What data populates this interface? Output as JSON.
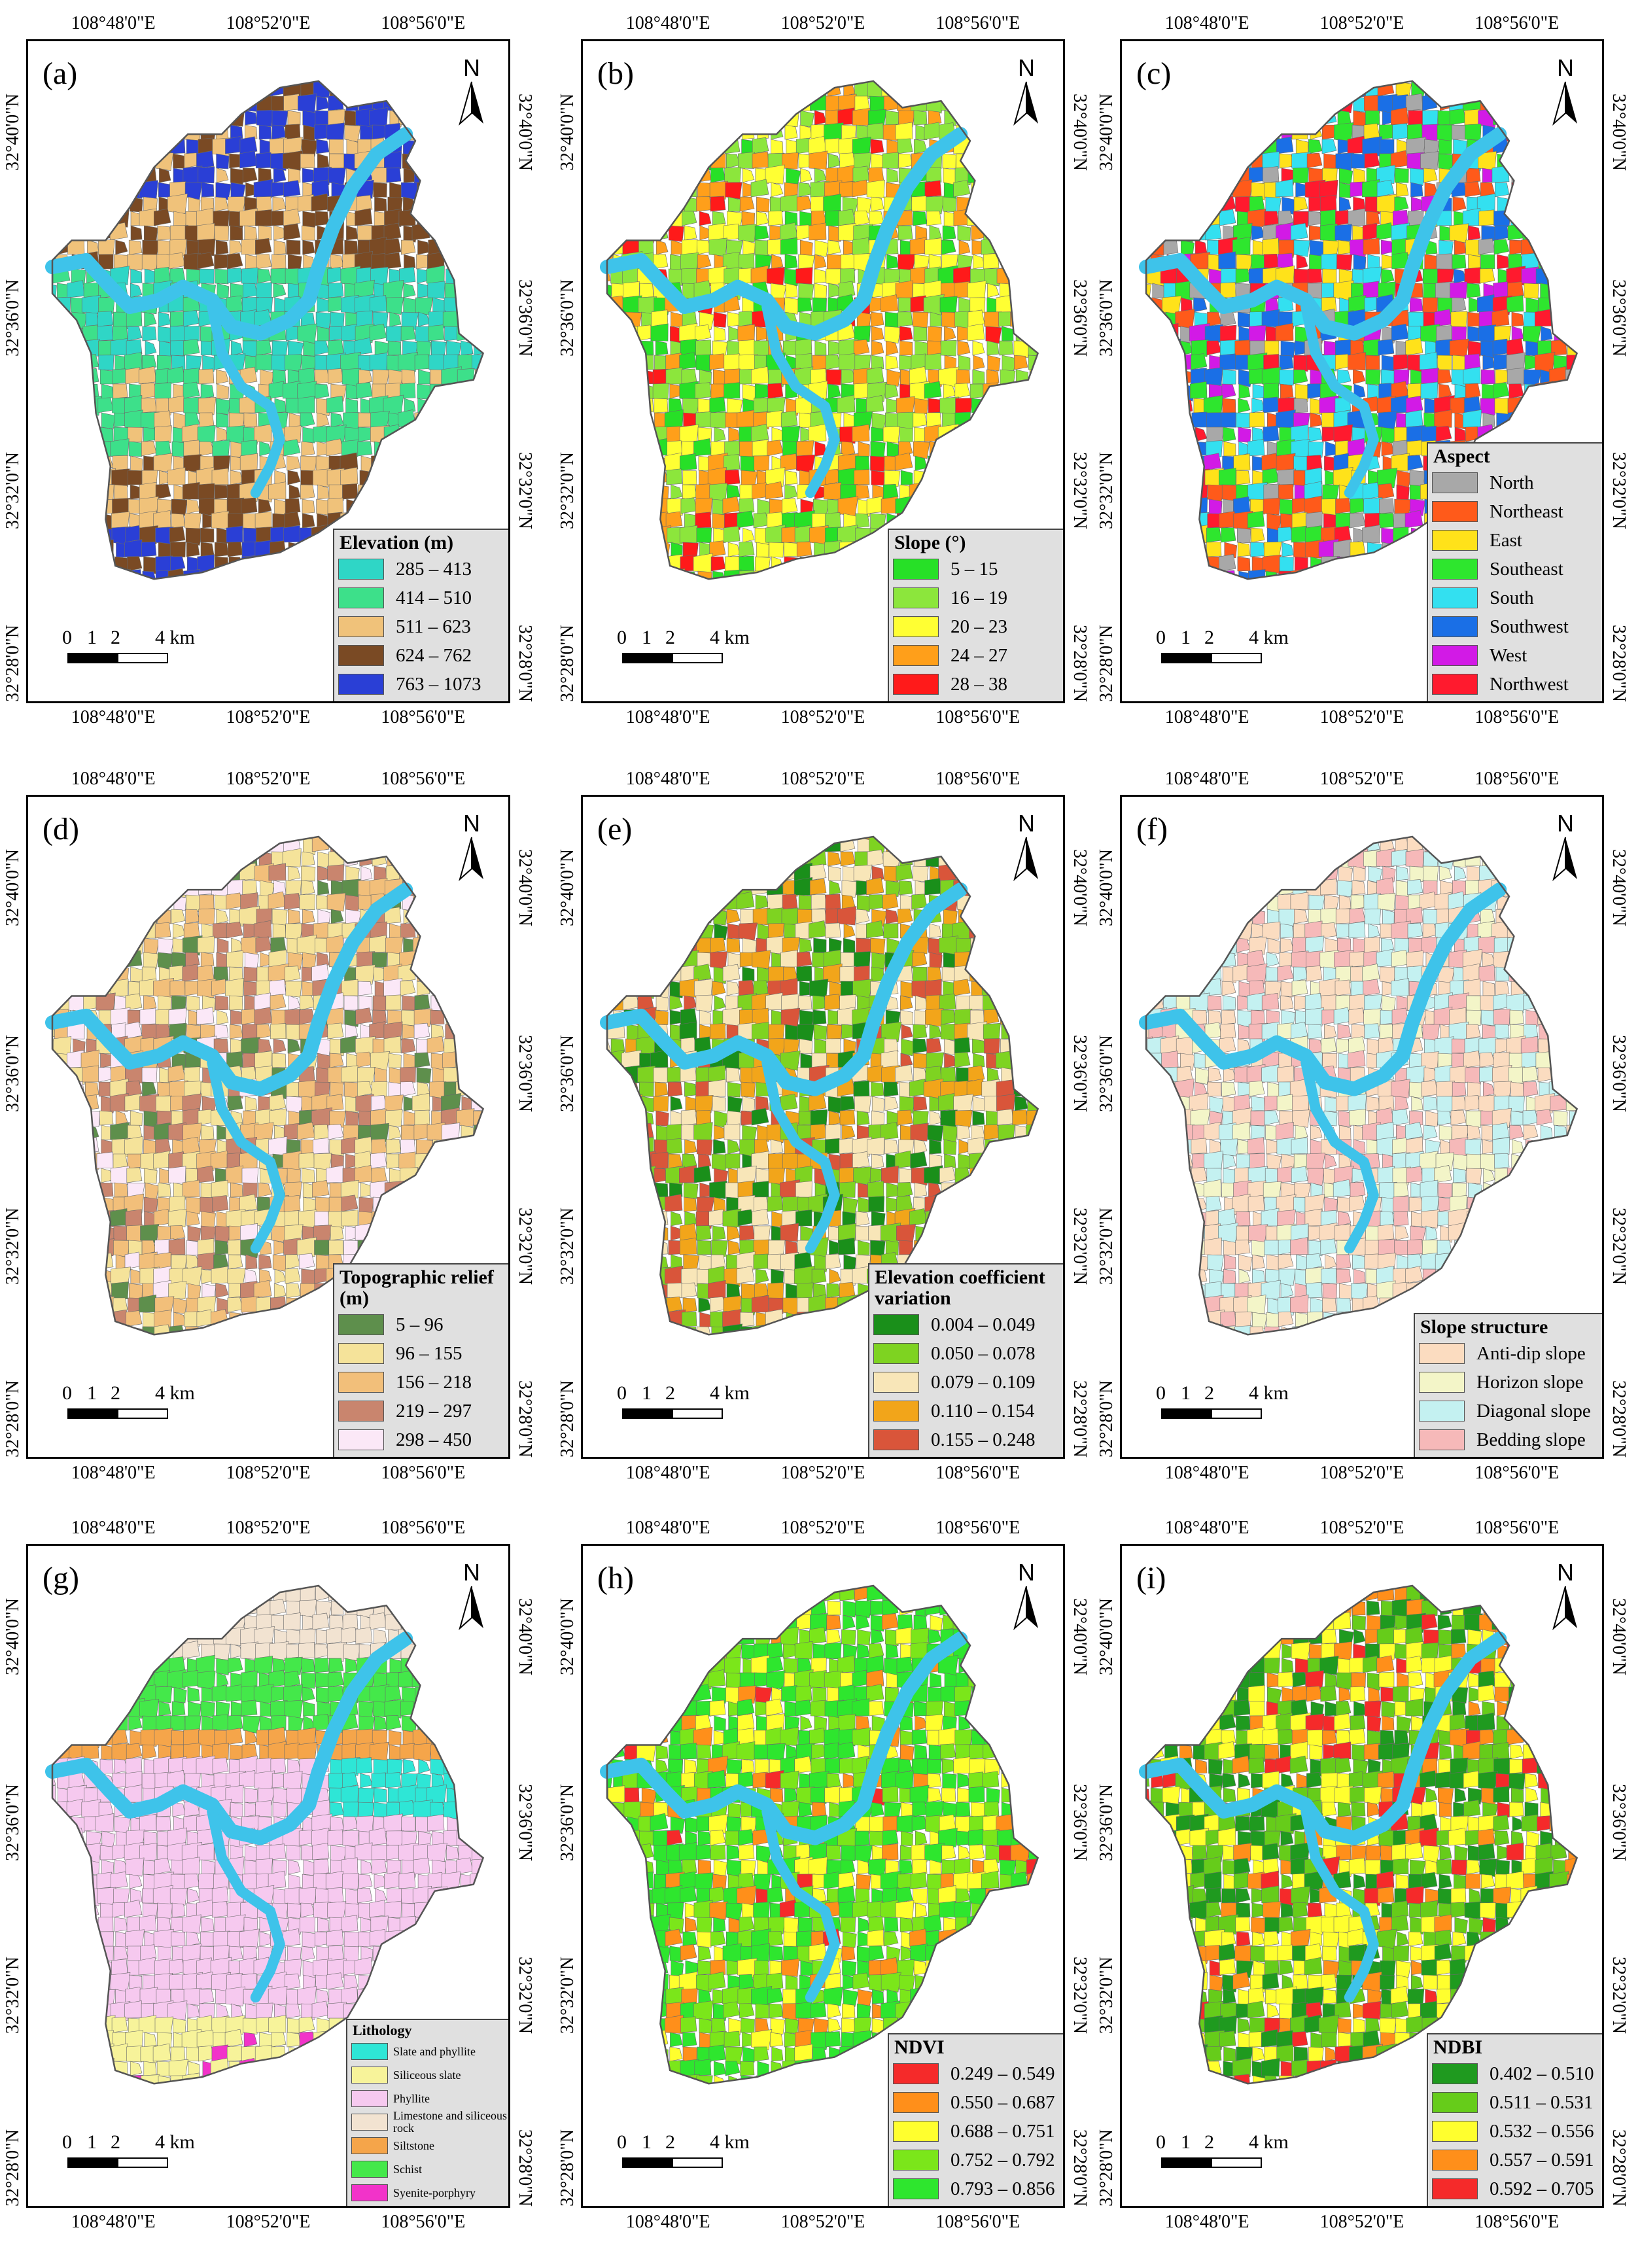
{
  "panels": [
    {
      "label": "(a)",
      "legend_title": "Elevation (m)",
      "classes": [
        {
          "label": "285 – 413",
          "color": "#2fd6c6"
        },
        {
          "label": "414 – 510",
          "color": "#3de08a"
        },
        {
          "label": "511 – 623",
          "color": "#f0c27a"
        },
        {
          "label": "624 – 762",
          "color": "#7a4a24"
        },
        {
          "label": "763 – 1073",
          "color": "#2a3fd6"
        }
      ],
      "mosaic": [
        0.05,
        0.35,
        0.35,
        0.18,
        0.07
      ]
    },
    {
      "label": "(b)",
      "legend_title": "Slope (°)",
      "classes": [
        {
          "label": "5 – 15",
          "color": "#27e027"
        },
        {
          "label": "16 – 19",
          "color": "#8ce63c"
        },
        {
          "label": "20 – 23",
          "color": "#ffff33"
        },
        {
          "label": "24 – 27",
          "color": "#ff9f1a"
        },
        {
          "label": "28 – 38",
          "color": "#ff1a1a"
        }
      ],
      "mosaic": [
        0.12,
        0.28,
        0.28,
        0.26,
        0.06
      ]
    },
    {
      "label": "(c)",
      "legend_title": "Aspect",
      "classes": [
        {
          "label": "North",
          "color": "#a8a8a8"
        },
        {
          "label": "Northeast",
          "color": "#ff5a1a"
        },
        {
          "label": "East",
          "color": "#ffe21a"
        },
        {
          "label": "Southeast",
          "color": "#2ee62e"
        },
        {
          "label": "South",
          "color": "#33e0f0"
        },
        {
          "label": "Southwest",
          "color": "#1a6fe6"
        },
        {
          "label": "West",
          "color": "#d21ae6"
        },
        {
          "label": "Northwest",
          "color": "#ff1a2e"
        }
      ],
      "mosaic": [
        0.06,
        0.14,
        0.12,
        0.18,
        0.16,
        0.14,
        0.08,
        0.12
      ]
    },
    {
      "label": "(d)",
      "legend_title": "Topographic relief (m)",
      "classes": [
        {
          "label": "5 – 96",
          "color": "#5e8f4c"
        },
        {
          "label": "96 – 155",
          "color": "#f5e39a"
        },
        {
          "label": "156 – 218",
          "color": "#f2bf7a"
        },
        {
          "label": "219 – 297",
          "color": "#c9856e"
        },
        {
          "label": "298 – 450",
          "color": "#fbe8f7"
        }
      ],
      "mosaic": [
        0.1,
        0.32,
        0.26,
        0.22,
        0.1
      ]
    },
    {
      "label": "(e)",
      "legend_title": "Elevation coefficient variation",
      "classes": [
        {
          "label": "0.004 – 0.049",
          "color": "#1a8f1a"
        },
        {
          "label": "0.050 – 0.078",
          "color": "#7ed321"
        },
        {
          "label": "0.079 – 0.109",
          "color": "#f8e6b8"
        },
        {
          "label": "0.110 – 0.154",
          "color": "#f2a51a"
        },
        {
          "label": "0.155 – 0.248",
          "color": "#d9553a"
        }
      ],
      "mosaic": [
        0.14,
        0.28,
        0.24,
        0.22,
        0.12
      ]
    },
    {
      "label": "(f)",
      "legend_title": "Slope structure",
      "classes": [
        {
          "label": "Anti-dip slope",
          "color": "#fbdcc0"
        },
        {
          "label": "Horizon slope",
          "color": "#f3f5c8"
        },
        {
          "label": "Diagonal slope",
          "color": "#c4f1f1"
        },
        {
          "label": "Bedding slope",
          "color": "#f6b9b9"
        }
      ],
      "mosaic": [
        0.3,
        0.18,
        0.3,
        0.22
      ]
    },
    {
      "label": "(g)",
      "legend_title": "Lithology",
      "classes": [
        {
          "label": "Slate and phyllite",
          "color": "#2ee6d6"
        },
        {
          "label": "Siliceous slate",
          "color": "#f7f39a"
        },
        {
          "label": "Phyllite",
          "color": "#f6c9ef"
        },
        {
          "label": "Limestone and siliceous rock",
          "color": "#f2e3d1"
        },
        {
          "label": "Siltstone",
          "color": "#f5a54a"
        },
        {
          "label": "Schist",
          "color": "#44e84a"
        },
        {
          "label": "Syenite-porphyry",
          "color": "#f233c9"
        }
      ],
      "mosaic": [
        0.05,
        0.1,
        0.45,
        0.12,
        0.08,
        0.18,
        0.02
      ]
    },
    {
      "label": "(h)",
      "legend_title": "NDVI",
      "classes": [
        {
          "label": "0.249 – 0.549",
          "color": "#f52a2a"
        },
        {
          "label": "0.550 – 0.687",
          "color": "#ff8f1a"
        },
        {
          "label": "0.688 – 0.751",
          "color": "#ffff2e"
        },
        {
          "label": "0.752 – 0.792",
          "color": "#7be61a"
        },
        {
          "label": "0.793 – 0.856",
          "color": "#2ee62e"
        }
      ],
      "mosaic": [
        0.03,
        0.1,
        0.17,
        0.3,
        0.4
      ]
    },
    {
      "label": "(i)",
      "legend_title": "NDBI",
      "classes": [
        {
          "label": "0.402 – 0.510",
          "color": "#1f9a1f"
        },
        {
          "label": "0.511 – 0.531",
          "color": "#66cc1a"
        },
        {
          "label": "0.532 – 0.556",
          "color": "#ffff2e"
        },
        {
          "label": "0.557 – 0.591",
          "color": "#ff8f1a"
        },
        {
          "label": "0.592 – 0.705",
          "color": "#f52a2a"
        }
      ],
      "mosaic": [
        0.25,
        0.3,
        0.24,
        0.14,
        0.07
      ]
    }
  ],
  "colors": {
    "river": "#3ec3ea",
    "boundary": "#555555",
    "legend_bg": "#e0e0e0"
  },
  "coords": {
    "lon": [
      "108°48'0\"E",
      "108°52'0\"E",
      "108°56'0\"E"
    ],
    "lat": [
      "32°40'0\"N",
      "32°36'0\"N",
      "32°32'0\"N",
      "32°28'0\"N"
    ]
  },
  "north_label": "N",
  "scale": {
    "ticks": [
      "0",
      "1",
      "2",
      "4"
    ],
    "unit": "km"
  },
  "icons": {
    "north_arrow": "north-arrow-icon"
  }
}
